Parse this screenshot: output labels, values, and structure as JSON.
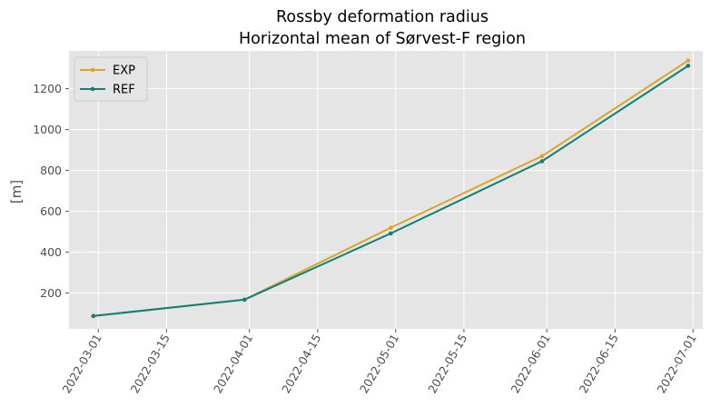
{
  "chart_data": {
    "type": "line",
    "title": [
      "Rossby deformation radius",
      "Horizontal mean of Sørvest-F region"
    ],
    "xlabel": "",
    "ylabel": "[m]",
    "x": [
      "2022-02-28",
      "2022-03-31",
      "2022-04-30",
      "2022-05-31",
      "2022-06-30"
    ],
    "x_ticks": [
      "2022-03-01",
      "2022-03-15",
      "2022-04-01",
      "2022-04-15",
      "2022-05-01",
      "2022-05-15",
      "2022-06-01",
      "2022-06-15",
      "2022-07-01"
    ],
    "xlim": [
      "2022-02-23",
      "2022-07-03"
    ],
    "y_ticks": [
      200,
      400,
      600,
      800,
      1000,
      1200
    ],
    "ylim": [
      25,
      1385
    ],
    "grid": true,
    "legend_position": "upper-left",
    "series": [
      {
        "name": "EXP",
        "color": "#daa52a",
        "values": [
          88,
          168,
          520,
          870,
          1338
        ]
      },
      {
        "name": "REF",
        "color": "#0b8178",
        "values": [
          88,
          168,
          492,
          845,
          1312
        ]
      }
    ],
    "background_color": "#e5e5e5",
    "grid_color": "#ffffff"
  }
}
